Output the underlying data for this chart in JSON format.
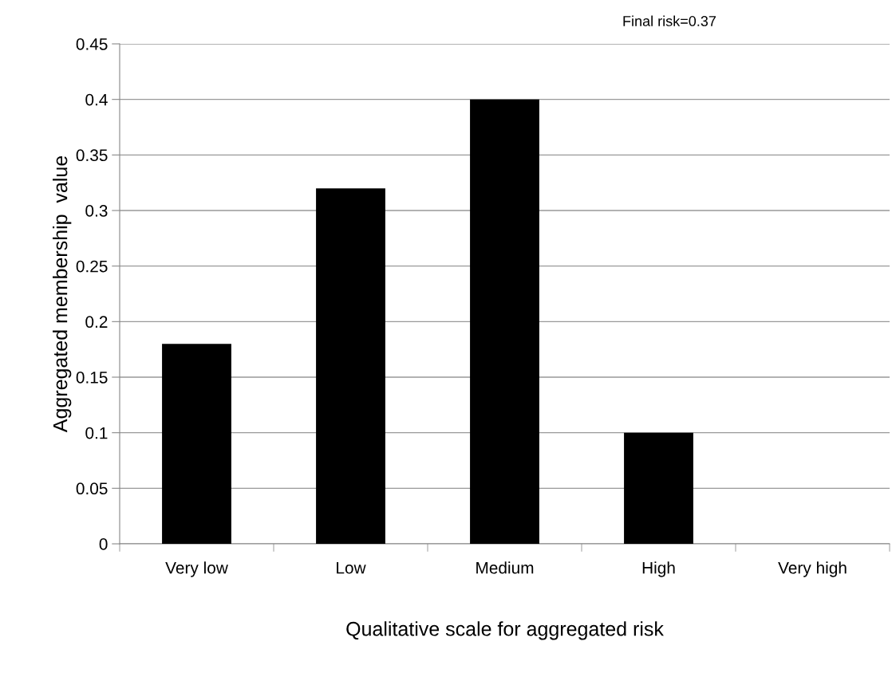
{
  "chart_data": {
    "type": "bar",
    "xlabel": "Qualitative scale for aggregated risk",
    "ylabel": "Aggregated membership  value",
    "categories": [
      "Very low",
      "Low",
      "Medium",
      "High",
      "Very high"
    ],
    "values": [
      0.18,
      0.32,
      0.4,
      0.1,
      0
    ],
    "color": "#000000",
    "ylim": [
      0,
      0.45
    ],
    "yticks": [
      0,
      0.05,
      0.1,
      0.15,
      0.2,
      0.25,
      0.3,
      0.35,
      0.4,
      0.45
    ],
    "grid": "y",
    "legend": false,
    "annotations": [
      "Final risk=0.37"
    ]
  }
}
